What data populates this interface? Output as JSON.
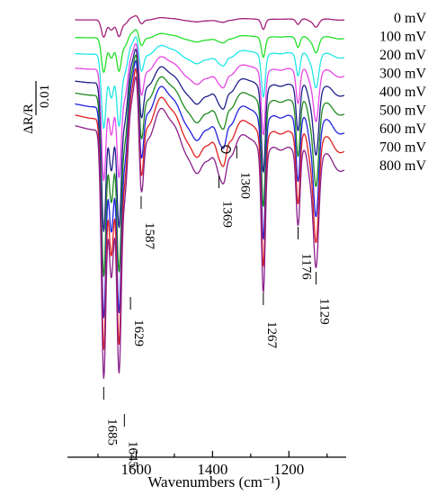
{
  "chart_data": {
    "type": "line",
    "xlabel": "Wavenumbers (cm⁻¹)",
    "xlim": [
      1780,
      1050
    ],
    "x_ticks": [
      {
        "value": 1600,
        "label": "1600"
      },
      {
        "value": 1400,
        "label": "1400"
      },
      {
        "value": 1200,
        "label": "1200"
      }
    ],
    "scale_bar": {
      "numerator": "ΔR/R",
      "denominator": "0.01"
    },
    "legend_placement": "right",
    "series": [
      {
        "name": "0 mV",
        "color": "#a0207a",
        "offset": 0,
        "amp": 0.07
      },
      {
        "name": "100 mV",
        "color": "#22e02a",
        "offset": 1,
        "amp": 0.14
      },
      {
        "name": "200 mV",
        "color": "#22e6e6",
        "offset": 2,
        "amp": 0.3
      },
      {
        "name": "300 mV",
        "color": "#e646e6",
        "offset": 3,
        "amp": 0.45
      },
      {
        "name": "400 mV",
        "color": "#20208a",
        "offset": 4,
        "amp": 0.6
      },
      {
        "name": "500 mV",
        "color": "#1e8a1e",
        "offset": 5,
        "amp": 0.73
      },
      {
        "name": "600 mV",
        "color": "#2222e0",
        "offset": 6,
        "amp": 0.85
      },
      {
        "name": "700 mV",
        "color": "#e02020",
        "offset": 7,
        "amp": 0.93
      },
      {
        "name": "800 mV",
        "color": "#8a1e8a",
        "offset": 8,
        "amp": 1.0
      }
    ],
    "bands": [
      {
        "x": 1685,
        "label": "1685",
        "direction": "down"
      },
      {
        "x": 1645,
        "label": "1645",
        "direction": "down"
      },
      {
        "x": 1629,
        "label": "1629",
        "direction": "down"
      },
      {
        "x": 1587,
        "label": "1587",
        "direction": "down"
      },
      {
        "x": 1369,
        "label": "1369",
        "direction": "down"
      },
      {
        "x": 1360,
        "label": "1360",
        "direction": "down"
      },
      {
        "x": 1267,
        "label": "1267",
        "direction": "down"
      },
      {
        "x": 1176,
        "label": "1176",
        "direction": "down"
      },
      {
        "x": 1129,
        "label": "1129",
        "direction": "down"
      }
    ]
  }
}
